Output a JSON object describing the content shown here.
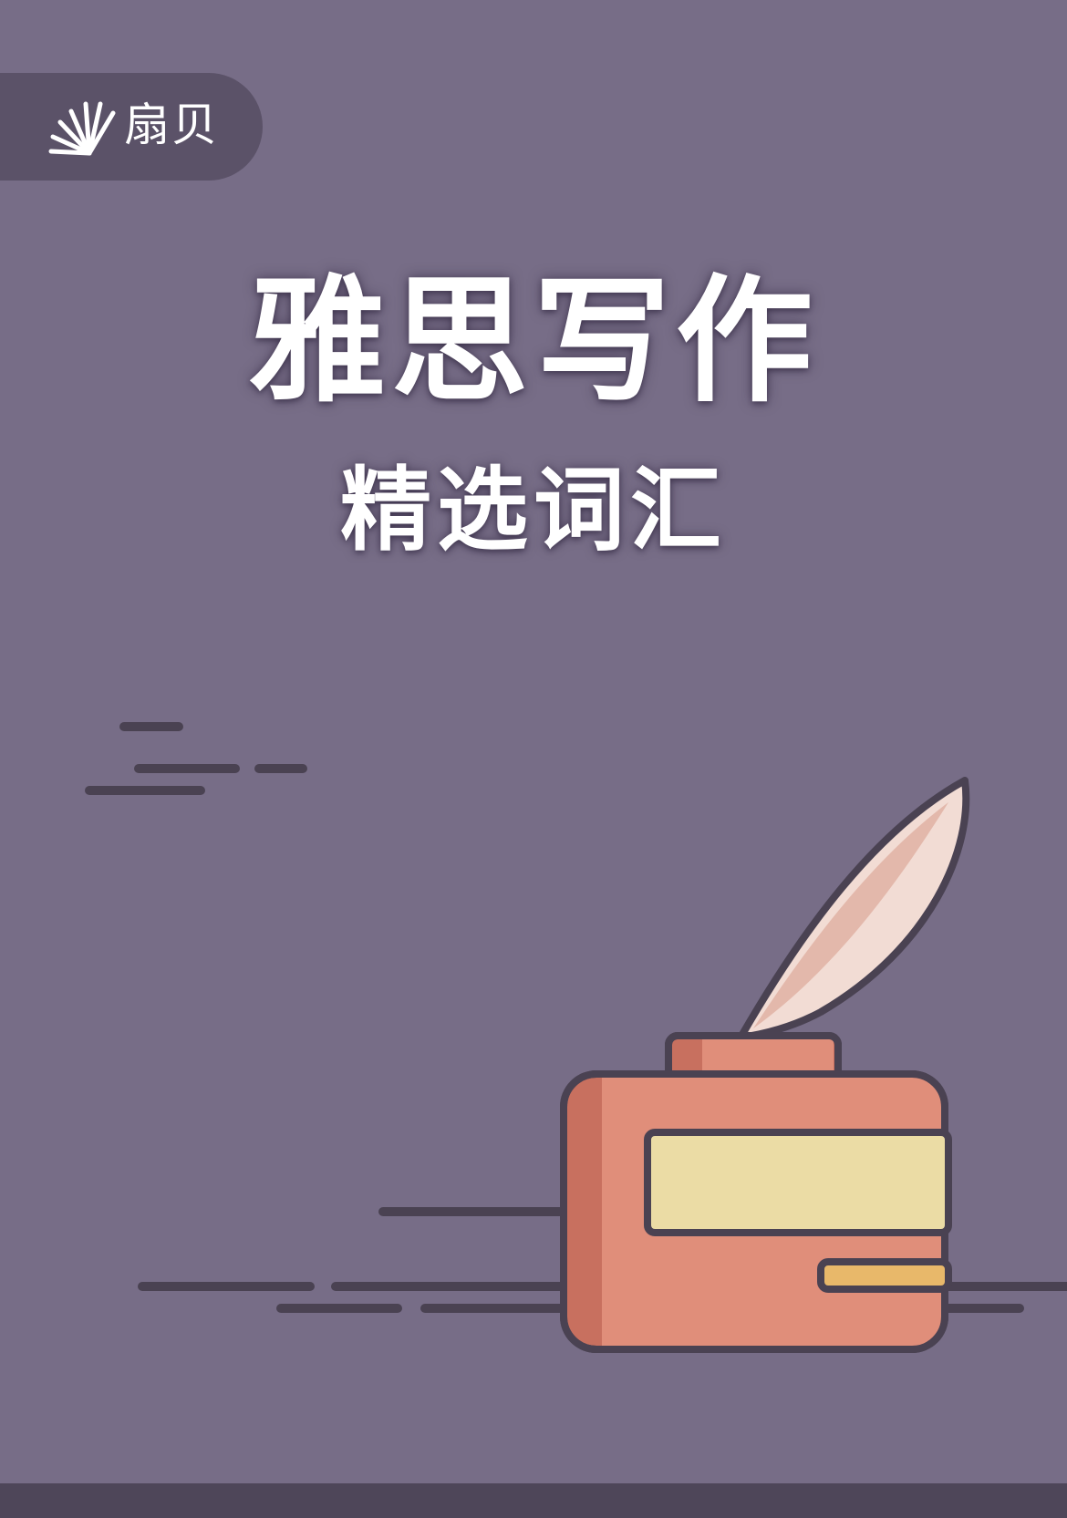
{
  "brand": {
    "name": "扇贝",
    "logo_icon": "shell-rays-icon"
  },
  "cover": {
    "title": "雅思写作",
    "subtitle": "精选词汇"
  },
  "illustration": {
    "icon": "inkwell-quill-icon"
  },
  "colors": {
    "background": "#776d87",
    "brand_tab": "#5b5268",
    "outline": "#4a4252",
    "ink_bottle": "#e08e7a",
    "ink_bottle_shade": "#c8705f",
    "label": "#ebdca5",
    "label_stripe": "#e8b86a",
    "quill": "#f2dcd4",
    "quill_shade": "#e3b8ab",
    "footer_band": "#4e4659"
  }
}
